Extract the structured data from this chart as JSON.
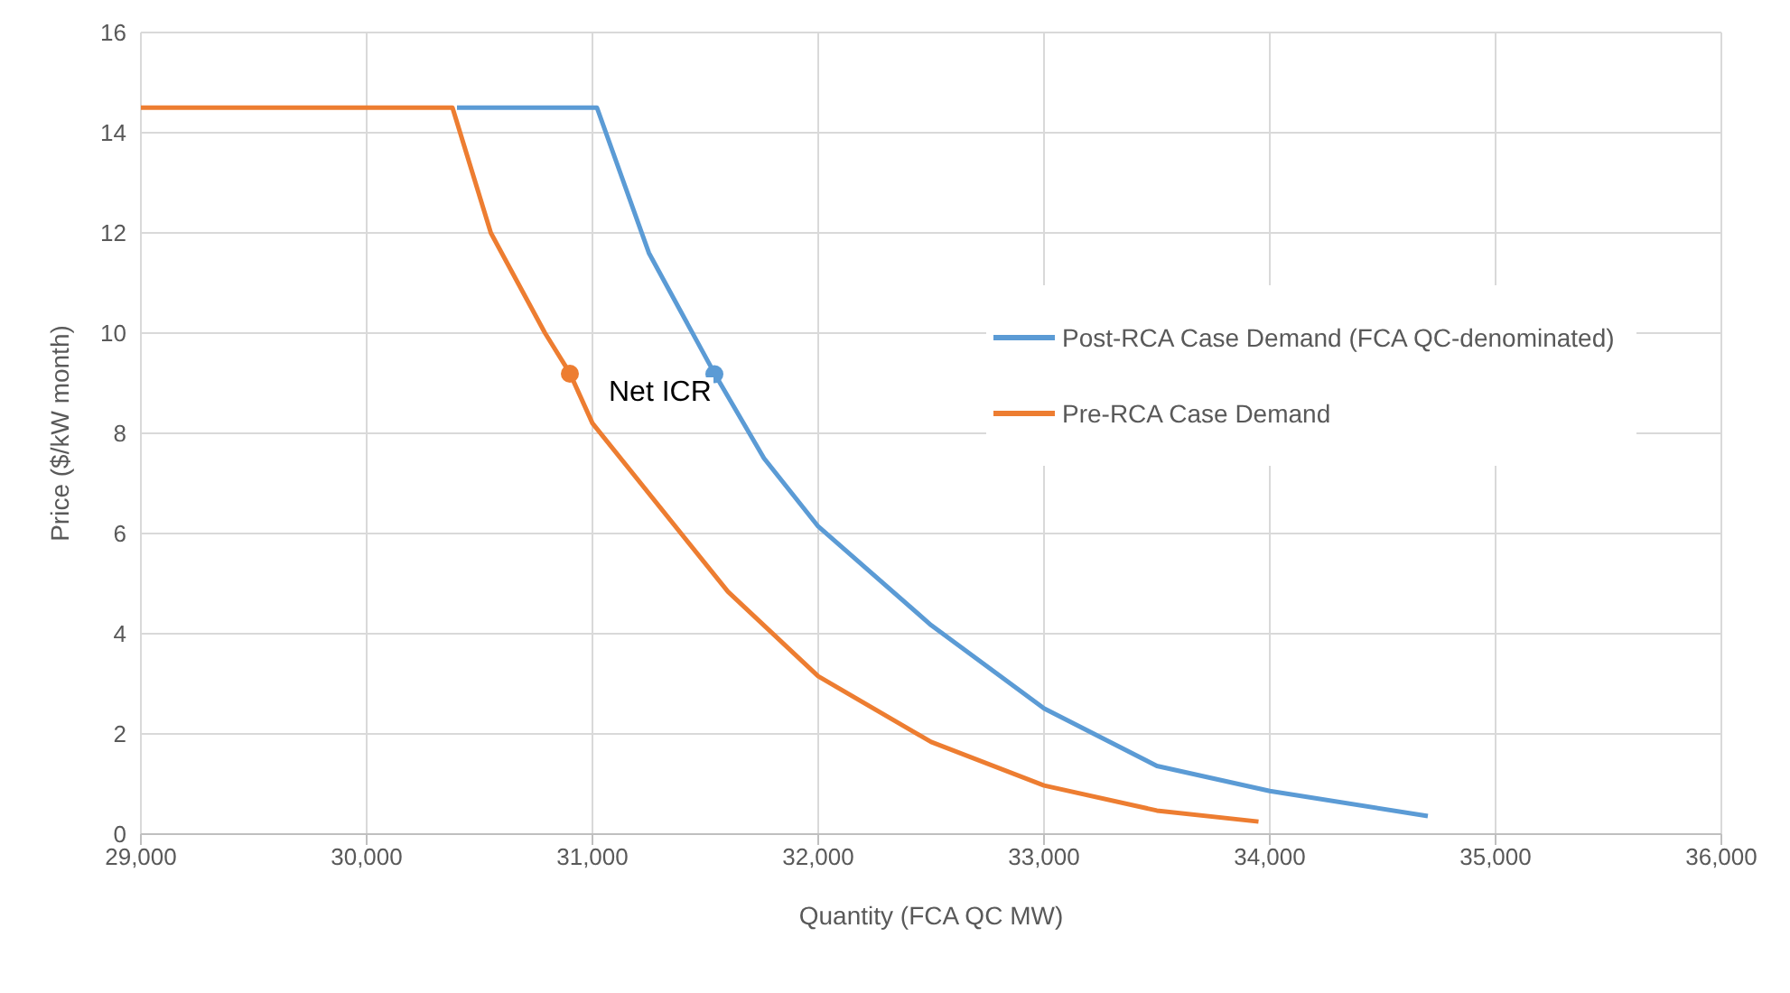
{
  "chart_data": {
    "type": "line",
    "xlabel": "Quantity (FCA QC MW)",
    "ylabel": "Price ($/kW month)",
    "xlim": [
      29000,
      36000
    ],
    "xticks": [
      {
        "value": 29000,
        "label": "29,000"
      },
      {
        "value": 30000,
        "label": "30,000"
      },
      {
        "value": 31000,
        "label": "31,000"
      },
      {
        "value": 32000,
        "label": "32,000"
      },
      {
        "value": 33000,
        "label": "33,000"
      },
      {
        "value": 34000,
        "label": "34,000"
      },
      {
        "value": 35000,
        "label": "35,000"
      },
      {
        "value": 36000,
        "label": "36,000"
      }
    ],
    "ylim": [
      0,
      16
    ],
    "yticks": [
      0,
      2,
      4,
      6,
      8,
      10,
      12,
      14,
      16
    ],
    "grid": true,
    "legend": "top right",
    "marker": "none",
    "line_style": "solid",
    "series": [
      {
        "name": "Post-RCA Case Demand (FCA QC-denominated)",
        "color": "#5b9bd5",
        "x": [
          30400,
          31020,
          31250,
          31540,
          31760,
          32000,
          32500,
          33000,
          33500,
          34000,
          34700
        ],
        "values": [
          14.5,
          14.5,
          11.6,
          9.2,
          7.5,
          6.14,
          4.17,
          2.51,
          1.36,
          0.86,
          0.36
        ]
      },
      {
        "name": "Pre-RCA Case Demand",
        "color": "#ed7d31",
        "x": [
          29000,
          30380,
          30550,
          30790,
          30900,
          31000,
          31600,
          32000,
          32500,
          33000,
          33500,
          33950
        ],
        "values": [
          14.5,
          14.5,
          12.0,
          10.0,
          9.2,
          8.2,
          4.84,
          3.15,
          1.84,
          0.97,
          0.47,
          0.25
        ]
      },
      {
        "type": "scatter",
        "color": "#5b9bd5",
        "marker": "circle",
        "x": [
          31540
        ],
        "values": [
          9.18
        ]
      },
      {
        "type": "scatter",
        "color": "#ed7d31",
        "marker": "circle",
        "x": [
          30900
        ],
        "values": [
          9.19
        ]
      }
    ],
    "annotations": [
      "Net ICR"
    ]
  }
}
